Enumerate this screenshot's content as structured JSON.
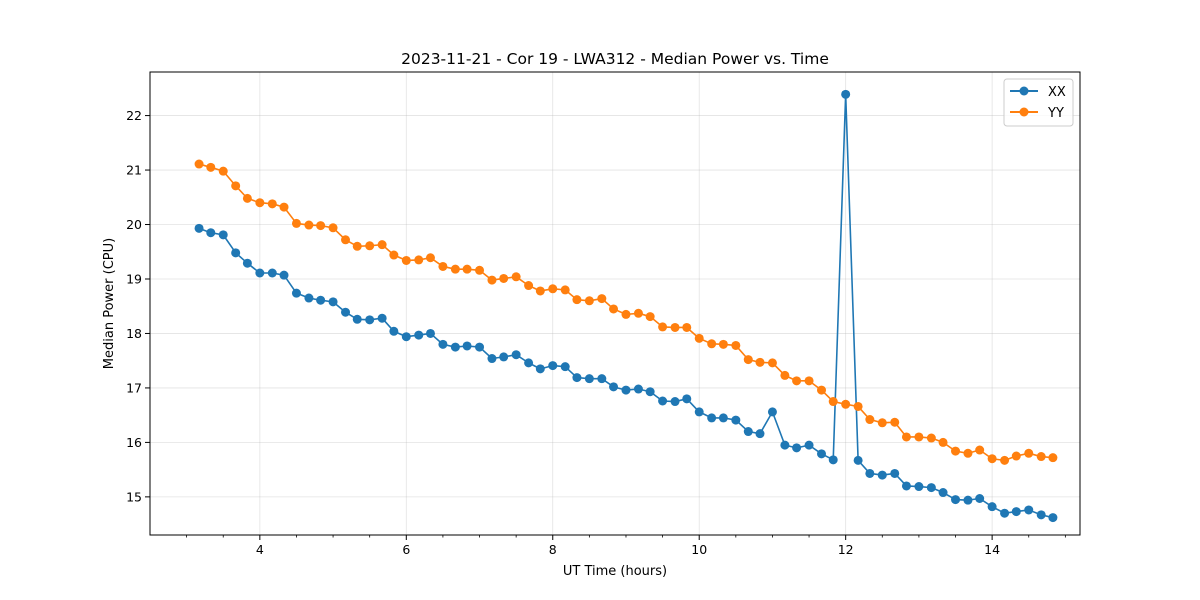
{
  "chart_data": {
    "type": "line",
    "title": "2023-11-21 - Cor 19 - LWA312 - Median Power vs. Time",
    "xlabel": "UT Time (hours)",
    "ylabel": "Median Power (CPU)",
    "xlim": [
      2.5,
      15.2
    ],
    "ylim": [
      14.3,
      22.8
    ],
    "xticks": [
      4,
      6,
      8,
      10,
      12,
      14
    ],
    "xtick_labels": [
      "4",
      "6",
      "8",
      "10",
      "12",
      "14"
    ],
    "yticks": [
      15,
      16,
      17,
      18,
      19,
      20,
      21,
      22
    ],
    "ytick_labels": [
      "15",
      "16",
      "17",
      "18",
      "19",
      "20",
      "21",
      "22"
    ],
    "grid": true,
    "legend_position": "top-right",
    "x": [
      3.17,
      3.33,
      3.5,
      3.67,
      3.83,
      4.0,
      4.17,
      4.33,
      4.5,
      4.67,
      4.83,
      5.0,
      5.17,
      5.33,
      5.5,
      5.67,
      5.83,
      6.0,
      6.17,
      6.33,
      6.5,
      6.67,
      6.83,
      7.0,
      7.17,
      7.33,
      7.5,
      7.67,
      7.83,
      8.0,
      8.17,
      8.33,
      8.5,
      8.67,
      8.83,
      9.0,
      9.17,
      9.33,
      9.5,
      9.67,
      9.83,
      10.0,
      10.17,
      10.33,
      10.5,
      10.67,
      10.83,
      11.0,
      11.17,
      11.33,
      11.5,
      11.67,
      11.83,
      12.0,
      12.17,
      12.33,
      12.5,
      12.67,
      12.83,
      13.0,
      13.17,
      13.33,
      13.5,
      13.67,
      13.83,
      14.0,
      14.17,
      14.33,
      14.5,
      14.67,
      14.83
    ],
    "series": [
      {
        "name": "XX",
        "color": "#1f77b4",
        "values": [
          19.93,
          19.85,
          19.81,
          19.48,
          19.29,
          19.11,
          19.11,
          19.07,
          18.74,
          18.65,
          18.61,
          18.58,
          18.39,
          18.26,
          18.25,
          18.28,
          18.04,
          17.94,
          17.97,
          18.0,
          17.8,
          17.75,
          17.77,
          17.75,
          17.54,
          17.57,
          17.61,
          17.46,
          17.35,
          17.41,
          17.39,
          17.19,
          17.17,
          17.17,
          17.02,
          16.96,
          16.98,
          16.93,
          16.76,
          16.75,
          16.8,
          16.56,
          16.45,
          16.45,
          16.41,
          16.2,
          16.16,
          16.56,
          15.95,
          15.9,
          15.95,
          15.79,
          15.68,
          22.39,
          15.67,
          15.43,
          15.4,
          15.43,
          15.2,
          15.19,
          15.17,
          15.08,
          14.95,
          14.94,
          14.97,
          14.82,
          14.7,
          14.73,
          14.76,
          14.67,
          14.62
        ]
      },
      {
        "name": "YY",
        "color": "#ff7f0e",
        "values": [
          21.11,
          21.05,
          20.98,
          20.71,
          20.48,
          20.4,
          20.38,
          20.32,
          20.02,
          19.99,
          19.98,
          19.94,
          19.72,
          19.6,
          19.61,
          19.63,
          19.44,
          19.34,
          19.35,
          19.39,
          19.23,
          19.18,
          19.18,
          19.16,
          18.98,
          19.01,
          19.04,
          18.88,
          18.78,
          18.82,
          18.8,
          18.62,
          18.6,
          18.64,
          18.45,
          18.35,
          18.37,
          18.31,
          18.12,
          18.11,
          18.11,
          17.91,
          17.81,
          17.8,
          17.78,
          17.52,
          17.47,
          17.46,
          17.23,
          17.13,
          17.13,
          16.96,
          16.75,
          16.7,
          16.66,
          16.42,
          16.36,
          16.37,
          16.1,
          16.1,
          16.08,
          16.0,
          15.84,
          15.8,
          15.86,
          15.7,
          15.67,
          15.75,
          15.8,
          15.74,
          15.72
        ]
      }
    ]
  }
}
